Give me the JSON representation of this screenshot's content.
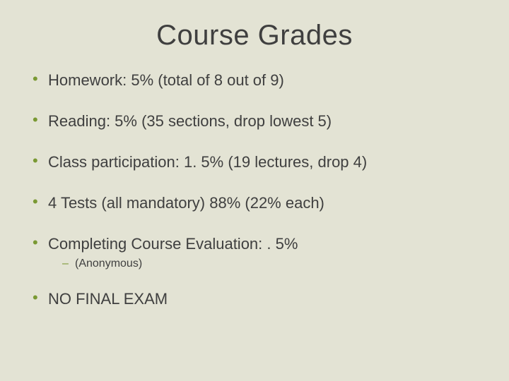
{
  "slide": {
    "background_color": "#e3e3d4",
    "title": {
      "text": "Course Grades",
      "color": "#3f3f3f",
      "fontsize": 40
    },
    "bullet": {
      "color": "#7a9933",
      "fontsize": 22
    },
    "body": {
      "color": "#3f3f3f",
      "fontsize": 22
    },
    "sub_bullet": {
      "color": "#7a9933",
      "fontsize": 16
    },
    "sub_body": {
      "color": "#3f3f3f",
      "fontsize": 16
    },
    "items": [
      {
        "text": "Homework: 5% (total of 8 out of 9)"
      },
      {
        "text": "Reading: 5% (35 sections, drop lowest 5)"
      },
      {
        "text": "Class participation: 1. 5% (19 lectures, drop 4)"
      },
      {
        "text": "4 Tests (all mandatory) 88% (22% each)"
      },
      {
        "text": "Completing Course Evaluation: . 5%",
        "sub": [
          {
            "text": "(Anonymous)"
          }
        ]
      },
      {
        "text": "NO FINAL EXAM"
      }
    ]
  }
}
